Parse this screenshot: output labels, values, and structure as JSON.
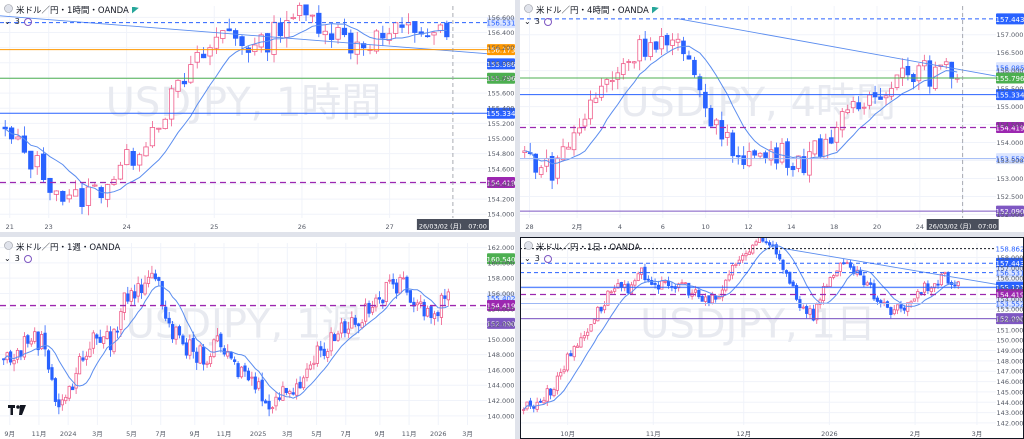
{
  "panes": [
    {
      "id": "tl",
      "title": "米ドル／円・1時間・OANDA",
      "sub": "3",
      "watermark": "USDJPY, 1時間",
      "y_ticks": [
        "156.600",
        "156.400",
        "156.200",
        "156.000",
        "155.800",
        "155.600",
        "155.400",
        "155.200",
        "155.000",
        "154.800",
        "154.600",
        "154.400",
        "154.200",
        "154.000"
      ],
      "y_range": [
        153.95,
        156.75
      ],
      "x_ticks": [
        "21",
        "23",
        "24",
        "25",
        "26",
        "27"
      ],
      "x_tick_pos": [
        0.02,
        0.1,
        0.26,
        0.44,
        0.62,
        0.8
      ],
      "price_tags": [
        {
          "label": "156.531",
          "value": 156.531,
          "color": "#2962ff",
          "bg": "#dbe5ff",
          "style": "dashed"
        },
        {
          "label": "156.173",
          "value": 156.173,
          "color": "#ff9800",
          "bg": "#ff9800",
          "style": "solid",
          "text": "#ffffff"
        },
        {
          "label": "155.986",
          "value": 155.986,
          "color": "#2962ff",
          "bg": "#2962ff",
          "style": "none",
          "text": "#ffffff"
        },
        {
          "label": "155.796",
          "value": 155.796,
          "color": "#4caf50",
          "bg": "#4caf50",
          "style": "solid",
          "text": "#ffffff"
        },
        {
          "label": "155.334",
          "value": 155.334,
          "color": "#2962ff",
          "bg": "#2962ff",
          "style": "solid",
          "text": "#ffffff"
        },
        {
          "label": "154.419",
          "value": 154.419,
          "color": "#9c27b0",
          "bg": "#9c27b0",
          "style": "dash-purple",
          "text": "#ffffff"
        }
      ],
      "date_tag": "26/03/02 (月)　07:00",
      "trend": [
        [
          0,
          156.62
        ],
        [
          1,
          156.12
        ]
      ],
      "series": {
        "start": 155.05,
        "shape": [
          0,
          -0.4,
          -0.9,
          -0.7,
          -0.3,
          0.3,
          0.9,
          1.4,
          1.1,
          1.6,
          1.5,
          1.2,
          1.3,
          1.4,
          1.3
        ],
        "noise": 0.17,
        "n": 70
      }
    },
    {
      "id": "tr",
      "title": "米ドル／円・4時間・OANDA",
      "sub": "3",
      "watermark": "USDJPY, 4時間",
      "y_ticks": [
        "157.000",
        "156.500",
        "156.000",
        "155.500",
        "155.000",
        "154.500",
        "154.000",
        "153.500",
        "153.000",
        "152.500",
        "152.000"
      ],
      "y_range": [
        151.9,
        157.8
      ],
      "x_ticks": [
        "28",
        "2月",
        "4",
        "6",
        "10",
        "12",
        "14",
        "18",
        "20",
        "24",
        "26"
      ],
      "x_tick_pos": [
        0.02,
        0.12,
        0.21,
        0.3,
        0.39,
        0.48,
        0.57,
        0.66,
        0.75,
        0.84,
        0.93
      ],
      "price_tags": [
        {
          "label": "157.443",
          "value": 157.443,
          "color": "#2962ff",
          "bg": "#2962ff",
          "style": "dashed",
          "text": "#ffffff"
        },
        {
          "label": "156.085",
          "value": 156.085,
          "color": "#2962ff",
          "bg": "#dbe5ff",
          "style": "none"
        },
        {
          "label": "155.796",
          "value": 155.796,
          "color": "#4caf50",
          "bg": "#4caf50",
          "style": "solid",
          "text": "#ffffff"
        },
        {
          "label": "155.334",
          "value": 155.334,
          "color": "#2962ff",
          "bg": "#2962ff",
          "style": "solid",
          "text": "#ffffff"
        },
        {
          "label": "154.419",
          "value": 154.419,
          "color": "#9c27b0",
          "bg": "#9c27b0",
          "style": "dash-purple",
          "text": "#ffffff"
        },
        {
          "label": "153.552",
          "value": 153.552,
          "color": "#2962ff",
          "bg": "#dbe5ff",
          "style": "solid-thin"
        },
        {
          "label": "152.090",
          "value": 152.09,
          "color": "#7e57c2",
          "bg": "#7e57c2",
          "style": "solid",
          "text": "#ffffff"
        }
      ],
      "date_tag": "26/03/02 (月)　07:00",
      "trend": [
        [
          0.33,
          157.45
        ],
        [
          1,
          155.85
        ]
      ],
      "series": {
        "start": 153.7,
        "shape": [
          0,
          -0.5,
          0.6,
          1.8,
          2.6,
          3.2,
          3.0,
          1.5,
          0.2,
          -0.1,
          0.0,
          -0.2,
          0.5,
          1.2,
          1.8,
          2.4,
          2.2,
          2.3
        ],
        "noise": 0.35,
        "n": 80
      }
    },
    {
      "id": "bl",
      "title": "米ドル／円・1週・OANDA",
      "sub": "3",
      "watermark": "USDJPY, 1週",
      "y_ticks": [
        "162.000",
        "160.000",
        "158.000",
        "156.000",
        "154.000",
        "152.000",
        "150.000",
        "148.000",
        "146.000",
        "144.000",
        "142.000",
        "140.000"
      ],
      "y_range": [
        138.8,
        162.6
      ],
      "x_ticks": [
        "9月",
        "11月",
        "2024",
        "3月",
        "5月",
        "7月",
        "9月",
        "11月",
        "2025",
        "3月",
        "5月",
        "7月",
        "9月",
        "11月",
        "2026",
        "3月"
      ],
      "x_tick_pos": [
        0.02,
        0.08,
        0.14,
        0.2,
        0.27,
        0.33,
        0.4,
        0.46,
        0.53,
        0.59,
        0.65,
        0.71,
        0.78,
        0.84,
        0.9,
        0.96
      ],
      "price_tags": [
        {
          "label": "160.540",
          "value": 160.54,
          "color": "#4caf50",
          "bg": "#4caf50",
          "style": "none",
          "text": "#ffffff"
        },
        {
          "label": "155.402",
          "value": 155.402,
          "color": "#2962ff",
          "bg": "#dbe5ff",
          "style": "none"
        },
        {
          "label": "154.419",
          "value": 154.419,
          "color": "#9c27b0",
          "bg": "#9c27b0",
          "style": "dash-purple",
          "text": "#ffffff"
        },
        {
          "label": "152.090",
          "value": 152.09,
          "color": "#7e57c2",
          "bg": "#7e57c2",
          "style": "none",
          "text": "#ffffff"
        }
      ],
      "date_tag": "",
      "trend": [],
      "series": {
        "start": 147.5,
        "shape": [
          0,
          0.5,
          3,
          2,
          -6,
          -4,
          1,
          3,
          2,
          8,
          9,
          12,
          6,
          2,
          1,
          0,
          2,
          -1,
          -2,
          -4,
          -6,
          -4,
          -3,
          0,
          2,
          4,
          5,
          6,
          8,
          10,
          9,
          7,
          6,
          8
        ],
        "noise": 1.3,
        "n": 130
      }
    },
    {
      "id": "br",
      "title": "米ドル／円・1日・OANDA",
      "sub": "3",
      "watermark": "USDJPY, 1日",
      "y_ticks": [
        "158.000",
        "157.000",
        "156.000",
        "155.000",
        "154.000",
        "153.000",
        "152.000",
        "151.000",
        "150.000",
        "149.000",
        "148.000",
        "147.000",
        "146.000",
        "145.000",
        "144.000",
        "143.000",
        "142.000"
      ],
      "y_range": [
        141.8,
        159.4
      ],
      "x_ticks": [
        "10月",
        "11月",
        "12月",
        "2026",
        "2月",
        "3月"
      ],
      "x_tick_pos": [
        0.1,
        0.28,
        0.47,
        0.65,
        0.83,
        0.96
      ],
      "price_tags": [
        {
          "label": "158.862",
          "value": 158.862,
          "color": "#131722",
          "bg": "#ffffff",
          "style": "dotted-black"
        },
        {
          "label": "157.443",
          "value": 157.443,
          "color": "#2962ff",
          "bg": "#2962ff",
          "style": "dashed",
          "text": "#ffffff"
        },
        {
          "label": "156.531",
          "value": 156.531,
          "color": "#2962ff",
          "bg": "#dbe5ff",
          "style": "dashed"
        },
        {
          "label": "155.334",
          "value": 155.334,
          "color": "#2962ff",
          "bg": "#dbe5ff",
          "style": "none"
        },
        {
          "label": "155.121",
          "value": 155.121,
          "color": "#2962ff",
          "bg": "#2962ff",
          "style": "solid",
          "text": "#ffffff"
        },
        {
          "label": "154.419",
          "value": 154.419,
          "color": "#9c27b0",
          "bg": "#9c27b0",
          "style": "dash-purple",
          "text": "#ffffff"
        },
        {
          "label": "153.552",
          "value": 153.552,
          "color": "#2962ff",
          "bg": "#dbe5ff",
          "style": "solid-thin"
        },
        {
          "label": "152.090",
          "value": 152.09,
          "color": "#7e57c2",
          "bg": "#7e57c2",
          "style": "solid",
          "text": "#ffffff"
        }
      ],
      "date_tag": "",
      "trend": [
        [
          0.55,
          158.9
        ],
        [
          1,
          155.4
        ]
      ],
      "series": {
        "start": 143.5,
        "shape": [
          0,
          0.5,
          1.5,
          4,
          6,
          8,
          10,
          12,
          11,
          13,
          12,
          11.5,
          12,
          11,
          10,
          11,
          14,
          15,
          16,
          15.5,
          13,
          10,
          9,
          12,
          14,
          13,
          12,
          10,
          9,
          10,
          11,
          12,
          12.5,
          12
        ],
        "noise": 0.6,
        "n": 130
      }
    }
  ],
  "colors": {
    "up": "#ef5c8a",
    "down": "#2962ff",
    "ma": "#5b8def",
    "grid": "#f0f3fa"
  }
}
